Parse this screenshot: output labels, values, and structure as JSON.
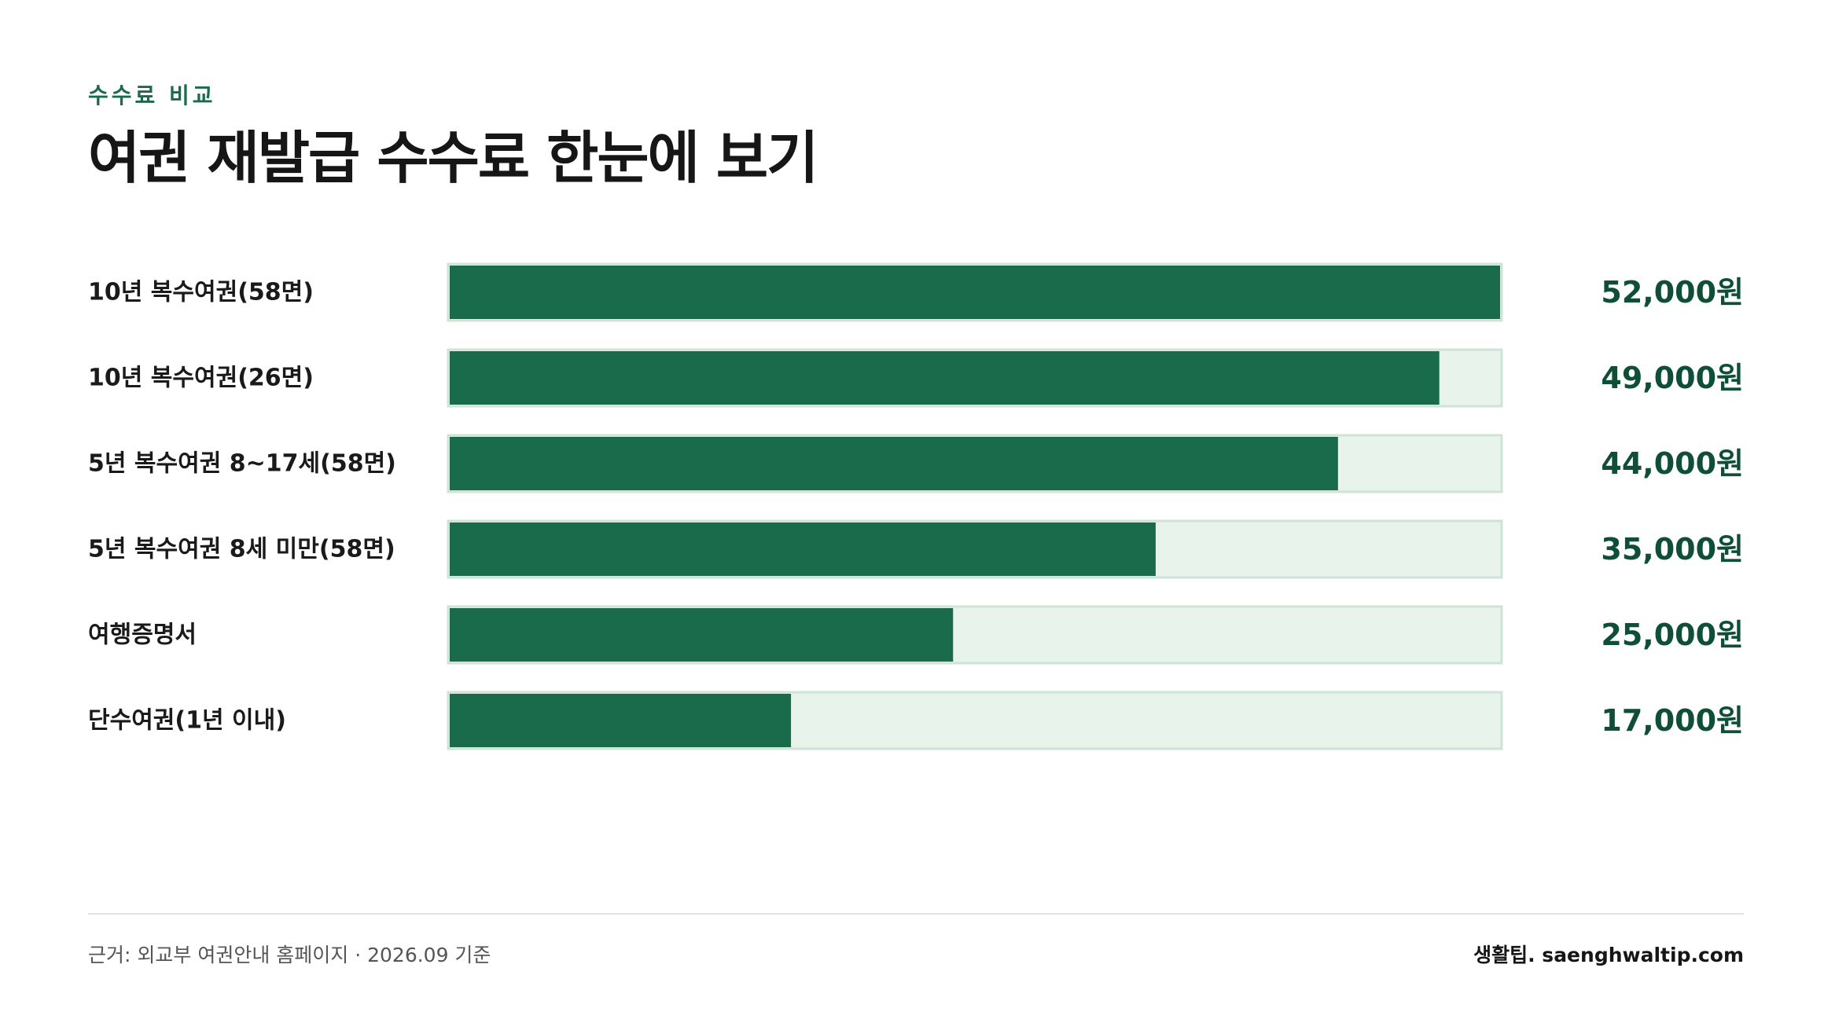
{
  "header": {
    "kicker": "수수료 비교",
    "title": "여권 재발급 수수료 한눈에 보기"
  },
  "colors": {
    "bar_fill": "#1a6b4b",
    "bar_track": "#e8f3ec",
    "bar_track_border": "#cfe3d7",
    "value_text": "#0f4f37",
    "kicker_text": "#1a6b4b"
  },
  "chart_data": {
    "type": "bar",
    "orientation": "horizontal",
    "categories": [
      "10년 복수여권(58면)",
      "10년 복수여권(26면)",
      "5년 복수여권 8~17세(58면)",
      "5년 복수여권 8세 미만(58면)",
      "여행증명서",
      "단수여권(1년 이내)"
    ],
    "values": [
      52000,
      49000,
      44000,
      35000,
      25000,
      17000
    ],
    "value_labels": [
      "52,000원",
      "49,000원",
      "44,000원",
      "35,000원",
      "25,000원",
      "17,000원"
    ],
    "xlim": [
      0,
      52000
    ],
    "grid": false,
    "legend": "none"
  },
  "footer": {
    "source": "근거: 외교부 여권안내 홈페이지 · 2026.09 기준",
    "brand": "생활팁. saenghwaltip.com"
  }
}
